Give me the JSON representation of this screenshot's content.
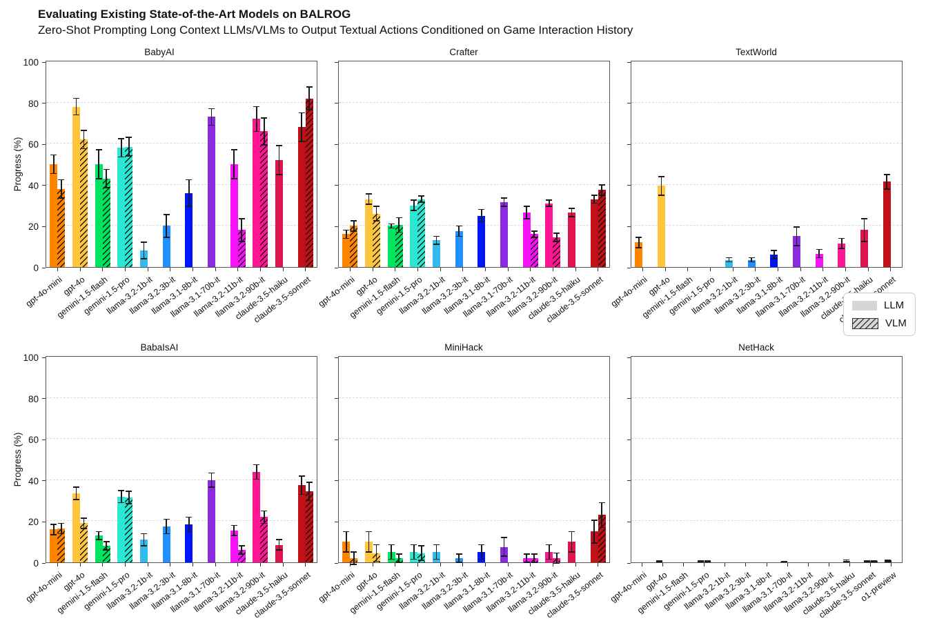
{
  "header": {
    "title": "Evaluating Existing State-of-the-Art Models on BALROG",
    "subtitle": "Zero-Shot Prompting Long Context LLMs/VLMs to Output Textual Actions Conditioned on Game Interaction History"
  },
  "legend": {
    "items": [
      {
        "label": "LLM",
        "hatched": false
      },
      {
        "label": "VLM",
        "hatched": true
      }
    ]
  },
  "axes": {
    "ylabel": "Progress (%)",
    "yticks": [
      0,
      20,
      40,
      60,
      80,
      100
    ],
    "ylim": [
      0,
      100
    ],
    "grid": "horizontal-dashed"
  },
  "colors": {
    "gpt-4o-mini": "#FF8400",
    "gpt-4o": "#FFC53D",
    "gemini-1.5-flash": "#00E360",
    "gemini-1.5-pro": "#2BE8D2",
    "llama-3.2-1b-it": "#33BBEE",
    "llama-3.2-3b-it": "#1E90FF",
    "llama-3.1-8b-it": "#0015FF",
    "llama-3.1-70b-it": "#8A2BE2",
    "llama-3.2-11b-it": "#F611F6",
    "llama-3.2-90b-it": "#FF1493",
    "claude-3.5-haiku": "#E0154E",
    "claude-3.5-sonnet": "#BF1117",
    "o1-preview": "#141414"
  },
  "chart_data": [
    {
      "type": "bar",
      "title": "BabyAI",
      "ylabel": "Progress (%)",
      "ylim": [
        0,
        100
      ],
      "show_ytick_numbers": true,
      "models": [
        {
          "name": "gpt-4o-mini",
          "llm": 50,
          "llm_err": 4.5,
          "vlm": 38,
          "vlm_err": 4.5
        },
        {
          "name": "gpt-4o",
          "llm": 78,
          "llm_err": 4.0,
          "vlm": 62,
          "vlm_err": 4.5
        },
        {
          "name": "gemini-1.5-flash",
          "llm": 50,
          "llm_err": 7.0,
          "vlm": 43,
          "vlm_err": 4.5
        },
        {
          "name": "gemini-1.5-pro",
          "llm": 58,
          "llm_err": 4.5,
          "vlm": 58.5,
          "vlm_err": 4.5
        },
        {
          "name": "llama-3.2-1b-it",
          "llm": 8,
          "llm_err": 4.0,
          "vlm": 0,
          "vlm_err": 0
        },
        {
          "name": "llama-3.2-3b-it",
          "llm": 20,
          "llm_err": 5.5,
          "vlm": 0,
          "vlm_err": 0
        },
        {
          "name": "llama-3.1-8b-it",
          "llm": 36,
          "llm_err": 6.5,
          "vlm": 0,
          "vlm_err": 0
        },
        {
          "name": "llama-3.1-70b-it",
          "llm": 73,
          "llm_err": 4.0,
          "vlm": 0,
          "vlm_err": 0
        },
        {
          "name": "llama-3.2-11b-it",
          "llm": 50,
          "llm_err": 7.0,
          "vlm": 18,
          "vlm_err": 5.5
        },
        {
          "name": "llama-3.2-90b-it",
          "llm": 72,
          "llm_err": 6.0,
          "vlm": 66,
          "vlm_err": 6.5
        },
        {
          "name": "claude-3.5-haiku",
          "llm": 52,
          "llm_err": 7.0,
          "vlm": 0,
          "vlm_err": 0
        },
        {
          "name": "claude-3.5-sonnet",
          "llm": 68,
          "llm_err": 7.0,
          "vlm": 82,
          "vlm_err": 5.5
        }
      ]
    },
    {
      "type": "bar",
      "title": "Crafter",
      "ylabel": "Progress (%)",
      "ylim": [
        0,
        100
      ],
      "show_ytick_numbers": false,
      "models": [
        {
          "name": "gpt-4o-mini",
          "llm": 16,
          "llm_err": 2.0,
          "vlm": 20,
          "vlm_err": 2.5
        },
        {
          "name": "gpt-4o",
          "llm": 33,
          "llm_err": 2.5,
          "vlm": 26,
          "vlm_err": 3.5
        },
        {
          "name": "gemini-1.5-flash",
          "llm": 20,
          "llm_err": 1.0,
          "vlm": 20.5,
          "vlm_err": 3.5
        },
        {
          "name": "gemini-1.5-pro",
          "llm": 30,
          "llm_err": 2.5,
          "vlm": 33,
          "vlm_err": 1.5
        },
        {
          "name": "llama-3.2-1b-it",
          "llm": 13,
          "llm_err": 2.0,
          "vlm": 0,
          "vlm_err": 0
        },
        {
          "name": "llama-3.2-3b-it",
          "llm": 17.5,
          "llm_err": 2.5,
          "vlm": 0,
          "vlm_err": 0
        },
        {
          "name": "llama-3.1-8b-it",
          "llm": 25,
          "llm_err": 3.0,
          "vlm": 0,
          "vlm_err": 0
        },
        {
          "name": "llama-3.1-70b-it",
          "llm": 31.5,
          "llm_err": 2.0,
          "vlm": 0,
          "vlm_err": 0
        },
        {
          "name": "llama-3.2-11b-it",
          "llm": 26.5,
          "llm_err": 3.0,
          "vlm": 16,
          "vlm_err": 1.5
        },
        {
          "name": "llama-3.2-90b-it",
          "llm": 31,
          "llm_err": 1.5,
          "vlm": 14.5,
          "vlm_err": 2.0
        },
        {
          "name": "claude-3.5-haiku",
          "llm": 26.5,
          "llm_err": 2.0,
          "vlm": 0,
          "vlm_err": 0
        },
        {
          "name": "claude-3.5-sonnet",
          "llm": 33,
          "llm_err": 2.0,
          "vlm": 37.5,
          "vlm_err": 2.5
        }
      ]
    },
    {
      "type": "bar",
      "title": "TextWorld",
      "ylabel": "Progress (%)",
      "ylim": [
        0,
        100
      ],
      "show_ytick_numbers": false,
      "models": [
        {
          "name": "gpt-4o-mini",
          "llm": 12,
          "llm_err": 2.5,
          "vlm": 0,
          "vlm_err": 0
        },
        {
          "name": "gpt-4o",
          "llm": 39.5,
          "llm_err": 4.5,
          "vlm": 0,
          "vlm_err": 0
        },
        {
          "name": "gemini-1.5-flash",
          "llm": 0,
          "llm_err": 0,
          "vlm": 0,
          "vlm_err": 0
        },
        {
          "name": "gemini-1.5-pro",
          "llm": 0,
          "llm_err": 0,
          "vlm": 0,
          "vlm_err": 0
        },
        {
          "name": "llama-3.2-1b-it",
          "llm": 3.5,
          "llm_err": 1.0,
          "vlm": 0,
          "vlm_err": 0
        },
        {
          "name": "llama-3.2-3b-it",
          "llm": 3.5,
          "llm_err": 1.0,
          "vlm": 0,
          "vlm_err": 0
        },
        {
          "name": "llama-3.1-8b-it",
          "llm": 6,
          "llm_err": 2.0,
          "vlm": 0,
          "vlm_err": 0
        },
        {
          "name": "llama-3.1-70b-it",
          "llm": 15,
          "llm_err": 4.5,
          "vlm": 0,
          "vlm_err": 0
        },
        {
          "name": "llama-3.2-11b-it",
          "llm": 6.5,
          "llm_err": 2.0,
          "vlm": 0,
          "vlm_err": 0
        },
        {
          "name": "llama-3.2-90b-it",
          "llm": 11.5,
          "llm_err": 2.5,
          "vlm": 0,
          "vlm_err": 0
        },
        {
          "name": "claude-3.5-haiku",
          "llm": 18,
          "llm_err": 5.5,
          "vlm": 0,
          "vlm_err": 0
        },
        {
          "name": "claude-3.5-sonnet",
          "llm": 41.5,
          "llm_err": 3.5,
          "vlm": 0,
          "vlm_err": 0
        }
      ]
    },
    {
      "type": "bar",
      "title": "BabaIsAI",
      "ylabel": "Progress (%)",
      "ylim": [
        0,
        100
      ],
      "show_ytick_numbers": true,
      "models": [
        {
          "name": "gpt-4o-mini",
          "llm": 16,
          "llm_err": 2.5,
          "vlm": 16.5,
          "vlm_err": 2.5
        },
        {
          "name": "gpt-4o",
          "llm": 33.5,
          "llm_err": 3.0,
          "vlm": 19,
          "vlm_err": 2.5
        },
        {
          "name": "gemini-1.5-flash",
          "llm": 13,
          "llm_err": 2.0,
          "vlm": 8,
          "vlm_err": 2.0
        },
        {
          "name": "gemini-1.5-pro",
          "llm": 32,
          "llm_err": 3.0,
          "vlm": 31.5,
          "vlm_err": 3.0
        },
        {
          "name": "llama-3.2-1b-it",
          "llm": 11,
          "llm_err": 3.0,
          "vlm": 0,
          "vlm_err": 0
        },
        {
          "name": "llama-3.2-3b-it",
          "llm": 17.5,
          "llm_err": 3.5,
          "vlm": 0,
          "vlm_err": 0
        },
        {
          "name": "llama-3.1-8b-it",
          "llm": 18.5,
          "llm_err": 3.5,
          "vlm": 0,
          "vlm_err": 0
        },
        {
          "name": "llama-3.1-70b-it",
          "llm": 40,
          "llm_err": 3.5,
          "vlm": 0,
          "vlm_err": 0
        },
        {
          "name": "llama-3.2-11b-it",
          "llm": 15.5,
          "llm_err": 2.5,
          "vlm": 6,
          "vlm_err": 2.0
        },
        {
          "name": "llama-3.2-90b-it",
          "llm": 44,
          "llm_err": 3.5,
          "vlm": 22,
          "vlm_err": 3.0
        },
        {
          "name": "claude-3.5-haiku",
          "llm": 8.5,
          "llm_err": 2.5,
          "vlm": 0,
          "vlm_err": 0
        },
        {
          "name": "claude-3.5-sonnet",
          "llm": 37.5,
          "llm_err": 4.5,
          "vlm": 34.5,
          "vlm_err": 4.5
        }
      ]
    },
    {
      "type": "bar",
      "title": "MiniHack",
      "ylabel": "Progress (%)",
      "ylim": [
        0,
        100
      ],
      "show_ytick_numbers": false,
      "models": [
        {
          "name": "gpt-4o-mini",
          "llm": 10,
          "llm_err": 5.0,
          "vlm": 2,
          "vlm_err": 3.0
        },
        {
          "name": "gpt-4o",
          "llm": 10,
          "llm_err": 5.0,
          "vlm": 4.5,
          "vlm_err": 4.0
        },
        {
          "name": "gemini-1.5-flash",
          "llm": 5,
          "llm_err": 3.5,
          "vlm": 2,
          "vlm_err": 2.0
        },
        {
          "name": "gemini-1.5-pro",
          "llm": 5,
          "llm_err": 3.5,
          "vlm": 4.5,
          "vlm_err": 3.5
        },
        {
          "name": "llama-3.2-1b-it",
          "llm": 5,
          "llm_err": 3.5,
          "vlm": 0,
          "vlm_err": 0
        },
        {
          "name": "llama-3.2-3b-it",
          "llm": 2,
          "llm_err": 2.0,
          "vlm": 0,
          "vlm_err": 0
        },
        {
          "name": "llama-3.1-8b-it",
          "llm": 5,
          "llm_err": 3.5,
          "vlm": 0,
          "vlm_err": 0
        },
        {
          "name": "llama-3.1-70b-it",
          "llm": 7.5,
          "llm_err": 4.5,
          "vlm": 0,
          "vlm_err": 0
        },
        {
          "name": "llama-3.2-11b-it",
          "llm": 2,
          "llm_err": 2.0,
          "vlm": 2,
          "vlm_err": 2.0
        },
        {
          "name": "llama-3.2-90b-it",
          "llm": 5,
          "llm_err": 3.5,
          "vlm": 2,
          "vlm_err": 2.5
        },
        {
          "name": "claude-3.5-haiku",
          "llm": 10,
          "llm_err": 5.0,
          "vlm": 0,
          "vlm_err": 0
        },
        {
          "name": "claude-3.5-sonnet",
          "llm": 15,
          "llm_err": 5.5,
          "vlm": 23,
          "vlm_err": 6.0
        }
      ]
    },
    {
      "type": "bar",
      "title": "NetHack",
      "ylabel": "Progress (%)",
      "ylim": [
        0,
        100
      ],
      "show_ytick_numbers": false,
      "models": [
        {
          "name": "gpt-4o-mini",
          "llm": 0,
          "llm_err": 0,
          "vlm": 0,
          "vlm_err": 0
        },
        {
          "name": "gpt-4o",
          "llm": 0.4,
          "llm_err": 0.2,
          "vlm": 0,
          "vlm_err": 0
        },
        {
          "name": "gemini-1.5-flash",
          "llm": 0,
          "llm_err": 0,
          "vlm": 0,
          "vlm_err": 0
        },
        {
          "name": "gemini-1.5-pro",
          "llm": 0.6,
          "llm_err": 0.3,
          "vlm": 0.4,
          "vlm_err": 0.2
        },
        {
          "name": "llama-3.2-1b-it",
          "llm": 0,
          "llm_err": 0,
          "vlm": 0,
          "vlm_err": 0
        },
        {
          "name": "llama-3.2-3b-it",
          "llm": 0,
          "llm_err": 0,
          "vlm": 0,
          "vlm_err": 0
        },
        {
          "name": "llama-3.1-8b-it",
          "llm": 0,
          "llm_err": 0,
          "vlm": 0,
          "vlm_err": 0
        },
        {
          "name": "llama-3.1-70b-it",
          "llm": 0.3,
          "llm_err": 0.15,
          "vlm": 0,
          "vlm_err": 0
        },
        {
          "name": "llama-3.2-11b-it",
          "llm": 0,
          "llm_err": 0,
          "vlm": 0,
          "vlm_err": 0
        },
        {
          "name": "llama-3.2-90b-it",
          "llm": 0,
          "llm_err": 0,
          "vlm": 0,
          "vlm_err": 0
        },
        {
          "name": "claude-3.5-haiku",
          "llm": 0.8,
          "llm_err": 0.4,
          "vlm": 0,
          "vlm_err": 0
        },
        {
          "name": "claude-3.5-sonnet",
          "llm": 0.6,
          "llm_err": 0.3,
          "vlm": 0.6,
          "vlm_err": 0.3
        },
        {
          "name": "o1-preview",
          "llm": 0.9,
          "llm_err": 0.2,
          "vlm": 0,
          "vlm_err": 0
        }
      ]
    }
  ]
}
